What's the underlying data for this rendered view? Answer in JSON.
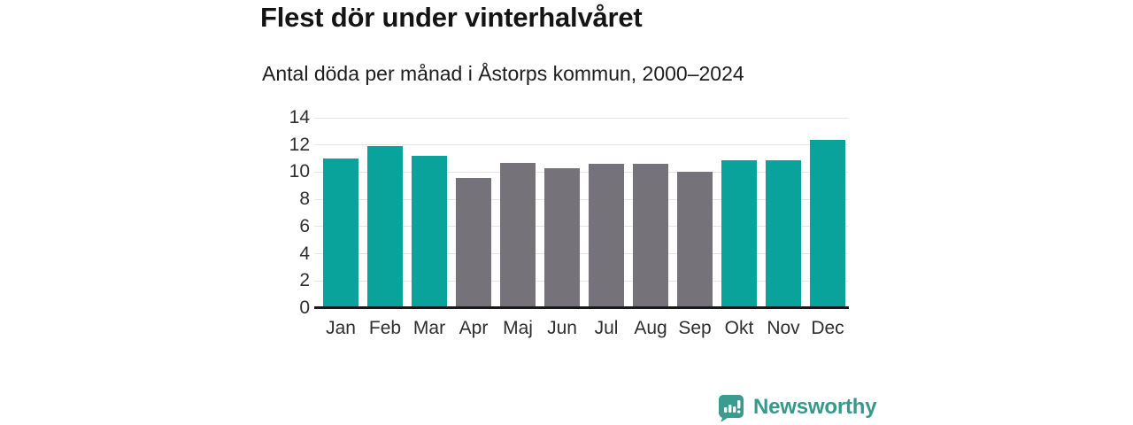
{
  "header": {
    "title": "Flest dör under vinterhalvåret",
    "subtitle": "Antal döda per månad i Åstorps kommun, 2000–2024"
  },
  "chart_data": {
    "type": "bar",
    "title": "Flest dör under vinterhalvåret",
    "subtitle": "Antal döda per månad i Åstorps kommun, 2000–2024",
    "categories": [
      "Jan",
      "Feb",
      "Mar",
      "Apr",
      "Maj",
      "Jun",
      "Jul",
      "Aug",
      "Sep",
      "Okt",
      "Nov",
      "Dec"
    ],
    "values": [
      11.0,
      11.9,
      11.2,
      9.6,
      10.7,
      10.3,
      10.6,
      10.6,
      10.0,
      10.9,
      10.9,
      12.4
    ],
    "bar_color_keys": [
      "winter",
      "winter",
      "winter",
      "summer",
      "summer",
      "summer",
      "summer",
      "summer",
      "summer",
      "winter",
      "winter",
      "winter"
    ],
    "colors": {
      "winter": "#0aa39b",
      "summer": "#757279"
    },
    "xlabel": "",
    "ylabel": "",
    "ylim": [
      0,
      14
    ],
    "yticks": [
      0,
      2,
      4,
      6,
      8,
      10,
      12,
      14
    ],
    "grid": true,
    "legend": "none"
  },
  "footer": {
    "brand": "Newsworthy",
    "brand_color": "#35998c",
    "logo_icon": "bar-chart-speech-bubble-icon"
  }
}
